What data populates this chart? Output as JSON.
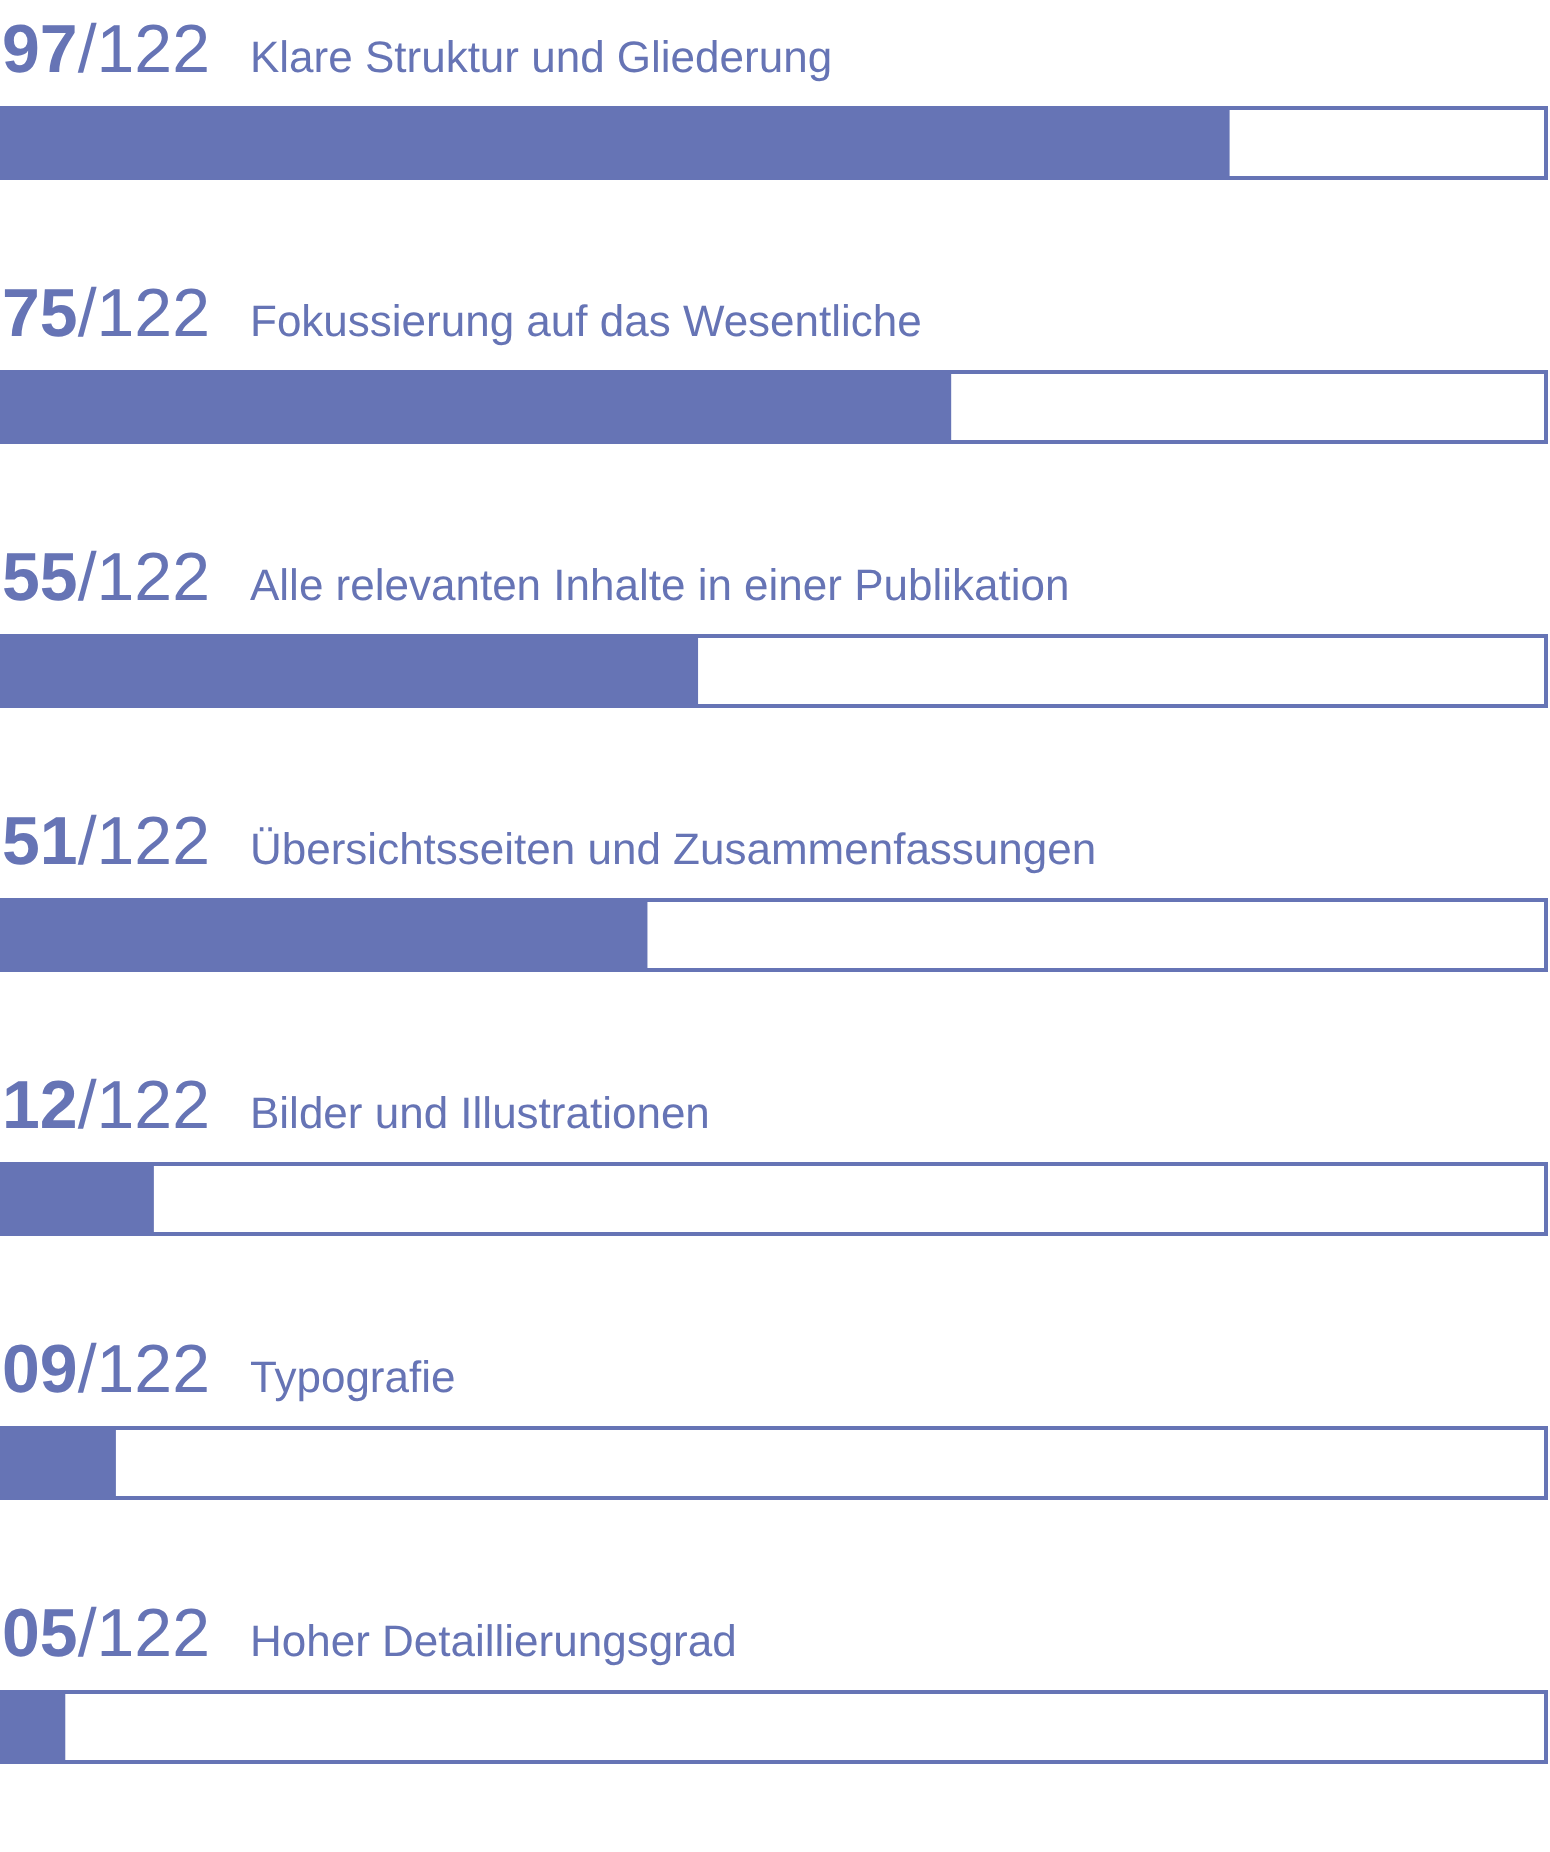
{
  "chart_data": {
    "type": "bar",
    "orientation": "horizontal",
    "categories": [
      "Klare Struktur und Gliederung",
      "Fokussierung auf das Wesentliche",
      "Alle relevanten Inhalte in einer Publikation",
      "Übersichtsseiten und Zusammenfassungen",
      "Bilder und Illustrationen",
      "Typografie",
      "Hoher Detaillierungsgrad"
    ],
    "values": [
      97,
      75,
      55,
      51,
      12,
      9,
      5
    ],
    "value_labels": [
      "97/122",
      "75/122",
      "55/122",
      "51/122",
      "12/122",
      "09/122",
      "05/122"
    ],
    "color": "#6674b5",
    "xlim": [
      0,
      122
    ],
    "tick_labels": "y"
  }
}
